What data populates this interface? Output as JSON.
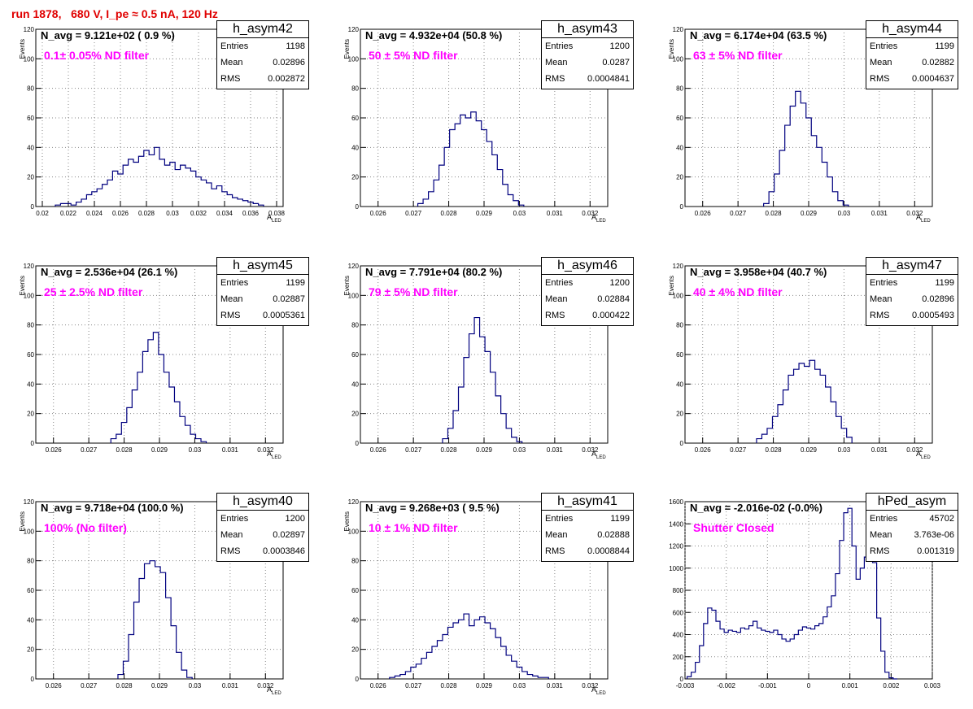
{
  "run_title": "run 1878,   680 V, I_pe ≈ 0.5 nA, 120 Hz",
  "common": {
    "ylabel": "Events",
    "xlabel_main": "A",
    "xlabel_sub": "LED",
    "stat_labels": {
      "entries": "Entries",
      "mean": "Mean",
      "rms": "RMS"
    },
    "line_color": "#00007f",
    "annotation_color": "#ff00ff",
    "title_color": "#e00000"
  },
  "panels": [
    {
      "name": "h_asym42",
      "navg": "N_avg = 9.121e+02 ( 0.9 %)",
      "filter": "0.1± 0.05% ND filter",
      "entries": "1198",
      "mean": "0.02896",
      "rms": "0.002872"
    },
    {
      "name": "h_asym43",
      "navg": "N_avg = 4.932e+04 (50.8 %)",
      "filter": "50 ± 5% ND filter",
      "entries": "1200",
      "mean": "0.0287",
      "rms": "0.0004841"
    },
    {
      "name": "h_asym44",
      "navg": "N_avg = 6.174e+04 (63.5 %)",
      "filter": "63 ± 5% ND filter",
      "entries": "1199",
      "mean": "0.02882",
      "rms": "0.0004637"
    },
    {
      "name": "h_asym45",
      "navg": "N_avg = 2.536e+04 (26.1 %)",
      "filter": "25 ± 2.5% ND filter",
      "entries": "1199",
      "mean": "0.02887",
      "rms": "0.0005361"
    },
    {
      "name": "h_asym46",
      "navg": "N_avg = 7.791e+04 (80.2 %)",
      "filter": "79 ± 5% ND filter",
      "entries": "1200",
      "mean": "0.02884",
      "rms": "0.000422"
    },
    {
      "name": "h_asym47",
      "navg": "N_avg = 3.958e+04 (40.7 %)",
      "filter": "40 ± 4% ND filter",
      "entries": "1199",
      "mean": "0.02896",
      "rms": "0.0005493"
    },
    {
      "name": "h_asym40",
      "navg": "N_avg = 9.718e+04 (100.0 %)",
      "filter": "100% (No filter)",
      "entries": "1200",
      "mean": "0.02897",
      "rms": "0.0003846"
    },
    {
      "name": "h_asym41",
      "navg": "N_avg = 9.268e+03 ( 9.5 %)",
      "filter": "10 ± 1% ND filter",
      "entries": "1199",
      "mean": "0.02888",
      "rms": "0.0008844"
    },
    {
      "name": "hPed_asym",
      "navg": "N_avg = -2.016e-02 (-0.0%)",
      "filter": "Shutter Closed",
      "entries": "45702",
      "mean": "3.763e-06",
      "rms": "0.001319"
    }
  ],
  "chart_data": [
    {
      "type": "histogram",
      "title": "h_asym42",
      "xlabel": "A_LED",
      "ylabel": "Events",
      "xlim": [
        0.0195,
        0.0385
      ],
      "ylim": [
        0,
        120
      ],
      "xticks": [
        "0.02",
        "0.022",
        "0.024",
        "0.026",
        "0.028",
        "0.03",
        "0.032",
        "0.034",
        "0.036",
        "0.038"
      ],
      "xtick_values": [
        0.02,
        0.022,
        0.024,
        0.026,
        0.028,
        0.03,
        0.032,
        0.034,
        0.036,
        0.038
      ],
      "yticks": [
        0,
        20,
        40,
        60,
        80,
        100,
        120
      ],
      "bin_centers": [
        0.0212,
        0.0216,
        0.022,
        0.0224,
        0.0228,
        0.0232,
        0.0236,
        0.024,
        0.0244,
        0.0248,
        0.0252,
        0.0256,
        0.026,
        0.0264,
        0.0268,
        0.0272,
        0.0276,
        0.028,
        0.0284,
        0.0288,
        0.0292,
        0.0296,
        0.03,
        0.0304,
        0.0308,
        0.0312,
        0.0316,
        0.032,
        0.0324,
        0.0328,
        0.0332,
        0.0336,
        0.034,
        0.0344,
        0.0348,
        0.0352,
        0.0356,
        0.036,
        0.0364,
        0.0368
      ],
      "counts": [
        1,
        2,
        2,
        1,
        3,
        5,
        8,
        10,
        12,
        15,
        18,
        24,
        22,
        28,
        32,
        30,
        34,
        38,
        35,
        40,
        32,
        28,
        30,
        25,
        28,
        26,
        24,
        20,
        18,
        16,
        12,
        14,
        10,
        8,
        6,
        5,
        4,
        3,
        2,
        1
      ]
    },
    {
      "type": "histogram",
      "title": "h_asym43",
      "xlabel": "A_LED",
      "ylabel": "Events",
      "xlim": [
        0.0255,
        0.0325
      ],
      "ylim": [
        0,
        120
      ],
      "xticks": [
        "0.026",
        "0.027",
        "0.028",
        "0.029",
        "0.03",
        "0.031",
        "0.032"
      ],
      "xtick_values": [
        0.026,
        0.027,
        0.028,
        0.029,
        0.03,
        0.031,
        0.032
      ],
      "yticks": [
        0,
        20,
        40,
        60,
        80,
        100,
        120
      ],
      "bin_centers": [
        0.0272,
        0.02735,
        0.0275,
        0.02765,
        0.0278,
        0.02795,
        0.0281,
        0.02825,
        0.0284,
        0.02855,
        0.0287,
        0.02885,
        0.029,
        0.02915,
        0.0293,
        0.02945,
        0.0296,
        0.02975,
        0.0299,
        0.03005
      ],
      "counts": [
        2,
        5,
        10,
        18,
        28,
        40,
        52,
        56,
        62,
        60,
        64,
        58,
        52,
        44,
        35,
        25,
        15,
        8,
        4,
        1
      ]
    },
    {
      "type": "histogram",
      "title": "h_asym44",
      "xlabel": "A_LED",
      "ylabel": "Events",
      "xlim": [
        0.0255,
        0.0325
      ],
      "ylim": [
        0,
        120
      ],
      "xticks": [
        "0.026",
        "0.027",
        "0.028",
        "0.029",
        "0.03",
        "0.031",
        "0.032"
      ],
      "xtick_values": [
        0.026,
        0.027,
        0.028,
        0.029,
        0.03,
        0.031,
        0.032
      ],
      "yticks": [
        0,
        20,
        40,
        60,
        80,
        100,
        120
      ],
      "bin_centers": [
        0.0278,
        0.02795,
        0.0281,
        0.02825,
        0.0284,
        0.02855,
        0.0287,
        0.02885,
        0.029,
        0.02915,
        0.0293,
        0.02945,
        0.0296,
        0.02975,
        0.0299,
        0.03005
      ],
      "counts": [
        2,
        10,
        22,
        38,
        55,
        68,
        78,
        70,
        60,
        48,
        40,
        30,
        20,
        10,
        4,
        1
      ]
    },
    {
      "type": "histogram",
      "title": "h_asym45",
      "xlabel": "A_LED",
      "ylabel": "Events",
      "xlim": [
        0.0255,
        0.0325
      ],
      "ylim": [
        0,
        120
      ],
      "xticks": [
        "0.026",
        "0.027",
        "0.028",
        "0.029",
        "0.03",
        "0.031",
        "0.032"
      ],
      "xtick_values": [
        0.026,
        0.027,
        0.028,
        0.029,
        0.03,
        0.031,
        0.032
      ],
      "yticks": [
        0,
        20,
        40,
        60,
        80,
        100,
        120
      ],
      "bin_centers": [
        0.0277,
        0.02785,
        0.028,
        0.02815,
        0.0283,
        0.02845,
        0.0286,
        0.02875,
        0.0289,
        0.02905,
        0.0292,
        0.02935,
        0.0295,
        0.02965,
        0.0298,
        0.02995,
        0.0301,
        0.03025
      ],
      "counts": [
        3,
        6,
        14,
        24,
        36,
        48,
        62,
        70,
        75,
        60,
        48,
        38,
        28,
        18,
        12,
        6,
        3,
        1
      ]
    },
    {
      "type": "histogram",
      "title": "h_asym46",
      "xlabel": "A_LED",
      "ylabel": "Events",
      "xlim": [
        0.0255,
        0.0325
      ],
      "ylim": [
        0,
        120
      ],
      "xticks": [
        "0.026",
        "0.027",
        "0.028",
        "0.029",
        "0.03",
        "0.031",
        "0.032"
      ],
      "xtick_values": [
        0.026,
        0.027,
        0.028,
        0.029,
        0.03,
        0.031,
        0.032
      ],
      "yticks": [
        0,
        20,
        40,
        60,
        80,
        100,
        120
      ],
      "bin_centers": [
        0.0279,
        0.02805,
        0.0282,
        0.02835,
        0.0285,
        0.02865,
        0.0288,
        0.02895,
        0.0291,
        0.02925,
        0.0294,
        0.02955,
        0.0297,
        0.02985,
        0.03
      ],
      "counts": [
        3,
        10,
        22,
        38,
        58,
        74,
        85,
        72,
        62,
        48,
        32,
        20,
        10,
        4,
        1
      ]
    },
    {
      "type": "histogram",
      "title": "h_asym47",
      "xlabel": "A_LED",
      "ylabel": "Events",
      "xlim": [
        0.0255,
        0.0325
      ],
      "ylim": [
        0,
        120
      ],
      "xticks": [
        "0.026",
        "0.027",
        "0.028",
        "0.029",
        "0.03",
        "0.031",
        "0.032"
      ],
      "xtick_values": [
        0.026,
        0.027,
        0.028,
        0.029,
        0.03,
        0.031,
        0.032
      ],
      "yticks": [
        0,
        20,
        40,
        60,
        80,
        100,
        120
      ],
      "bin_centers": [
        0.0276,
        0.02775,
        0.0279,
        0.02805,
        0.0282,
        0.02835,
        0.0285,
        0.02865,
        0.0288,
        0.02895,
        0.0291,
        0.02925,
        0.0294,
        0.02955,
        0.0297,
        0.02985,
        0.03,
        0.03015
      ],
      "counts": [
        3,
        6,
        10,
        18,
        26,
        36,
        46,
        50,
        54,
        52,
        56,
        50,
        46,
        38,
        28,
        18,
        10,
        4
      ]
    },
    {
      "type": "histogram",
      "title": "h_asym40",
      "xlabel": "A_LED",
      "ylabel": "Events",
      "xlim": [
        0.0255,
        0.0325
      ],
      "ylim": [
        0,
        120
      ],
      "xticks": [
        "0.026",
        "0.027",
        "0.028",
        "0.029",
        "0.03",
        "0.031",
        "0.032"
      ],
      "xtick_values": [
        0.026,
        0.027,
        0.028,
        0.029,
        0.03,
        0.031,
        0.032
      ],
      "yticks": [
        0,
        20,
        40,
        60,
        80,
        100,
        120
      ],
      "bin_centers": [
        0.0279,
        0.02805,
        0.0282,
        0.02835,
        0.0285,
        0.02865,
        0.0288,
        0.02895,
        0.0291,
        0.02925,
        0.0294,
        0.02955,
        0.0297,
        0.02985
      ],
      "counts": [
        3,
        12,
        30,
        52,
        68,
        78,
        80,
        76,
        72,
        55,
        36,
        18,
        6,
        1
      ]
    },
    {
      "type": "histogram",
      "title": "h_asym41",
      "xlabel": "A_LED",
      "ylabel": "Events",
      "xlim": [
        0.0255,
        0.0325
      ],
      "ylim": [
        0,
        120
      ],
      "xticks": [
        "0.026",
        "0.027",
        "0.028",
        "0.029",
        "0.03",
        "0.031",
        "0.032"
      ],
      "xtick_values": [
        0.026,
        0.027,
        0.028,
        0.029,
        0.03,
        0.031,
        0.032
      ],
      "yticks": [
        0,
        20,
        40,
        60,
        80,
        100,
        120
      ],
      "bin_centers": [
        0.0264,
        0.02655,
        0.0267,
        0.02685,
        0.027,
        0.02715,
        0.0273,
        0.02745,
        0.0276,
        0.02775,
        0.0279,
        0.02805,
        0.0282,
        0.02835,
        0.0285,
        0.02865,
        0.0288,
        0.02895,
        0.0291,
        0.02925,
        0.0294,
        0.02955,
        0.0297,
        0.02985,
        0.03,
        0.03015,
        0.0303,
        0.03045,
        0.0306,
        0.03075
      ],
      "counts": [
        1,
        2,
        3,
        5,
        8,
        10,
        14,
        18,
        22,
        26,
        30,
        35,
        38,
        40,
        44,
        36,
        40,
        42,
        38,
        34,
        28,
        22,
        16,
        12,
        8,
        5,
        3,
        2,
        1,
        1
      ]
    },
    {
      "type": "histogram",
      "title": "hPed_asym",
      "xlabel": "",
      "ylabel": "",
      "xlim": [
        -0.003,
        0.003
      ],
      "ylim": [
        0,
        1600
      ],
      "xticks": [
        "-0.003",
        "-0.002",
        "-0.001",
        "0",
        "0.001",
        "0.002",
        "0.003"
      ],
      "xtick_values": [
        -0.003,
        -0.002,
        -0.001,
        0,
        0.001,
        0.002,
        0.003
      ],
      "yticks": [
        0,
        200,
        400,
        600,
        800,
        1000,
        1200,
        1400,
        1600
      ],
      "bin_centers": [
        -0.0029,
        -0.0028,
        -0.0027,
        -0.0026,
        -0.0025,
        -0.0024,
        -0.0023,
        -0.0022,
        -0.0021,
        -0.002,
        -0.0019,
        -0.0018,
        -0.0017,
        -0.0016,
        -0.0015,
        -0.0014,
        -0.0013,
        -0.0012,
        -0.0011,
        -0.001,
        -0.0009,
        -0.0008,
        -0.0007,
        -0.0006,
        -0.0005,
        -0.0004,
        -0.0003,
        -0.0002,
        -0.0001,
        0.0,
        0.0001,
        0.0002,
        0.0003,
        0.0004,
        0.0005,
        0.0006,
        0.0007,
        0.0008,
        0.0009,
        0.001,
        0.0011,
        0.0012,
        0.0013,
        0.0014,
        0.0015,
        0.0016,
        0.0017,
        0.0018,
        0.0019,
        0.002,
        0.0021
      ],
      "counts": [
        20,
        60,
        150,
        300,
        500,
        640,
        620,
        520,
        450,
        420,
        440,
        430,
        420,
        460,
        450,
        480,
        520,
        460,
        440,
        430,
        420,
        440,
        400,
        360,
        340,
        360,
        400,
        440,
        470,
        460,
        450,
        480,
        500,
        560,
        650,
        750,
        950,
        1250,
        1500,
        1540,
        1200,
        900,
        1000,
        1100,
        1250,
        1050,
        550,
        250,
        60,
        10,
        0
      ]
    }
  ]
}
